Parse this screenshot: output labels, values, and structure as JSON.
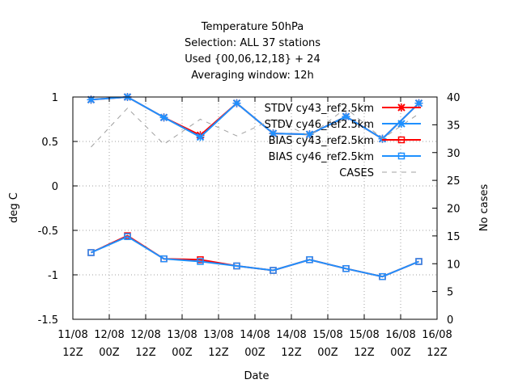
{
  "chart_data": {
    "type": "line",
    "title_lines": [
      "Temperature 50hPa",
      "Selection: ALL      37 stations",
      "Used {00,06,12,18} + 24",
      "Averaging window: 12h"
    ],
    "xlabel": "Date",
    "ylabel": "deg C",
    "y2label": "No cases",
    "x_ticks": [
      {
        "x": 0,
        "line1": "11/08",
        "line2": "12Z"
      },
      {
        "x": 1,
        "line1": "12/08",
        "line2": "00Z"
      },
      {
        "x": 2,
        "line1": "12/08",
        "line2": "12Z"
      },
      {
        "x": 3,
        "line1": "13/08",
        "line2": "00Z"
      },
      {
        "x": 4,
        "line1": "13/08",
        "line2": "12Z"
      },
      {
        "x": 5,
        "line1": "14/08",
        "line2": "00Z"
      },
      {
        "x": 6,
        "line1": "14/08",
        "line2": "12Z"
      },
      {
        "x": 7,
        "line1": "15/08",
        "line2": "00Z"
      },
      {
        "x": 8,
        "line1": "15/08",
        "line2": "12Z"
      },
      {
        "x": 9,
        "line1": "16/08",
        "line2": "00Z"
      },
      {
        "x": 10,
        "line1": "16/08",
        "line2": "12Z"
      }
    ],
    "xlim": [
      0,
      10
    ],
    "ylim": [
      -1.5,
      1
    ],
    "y_ticks": [
      -1.5,
      -1,
      -0.5,
      0,
      0.5,
      1
    ],
    "y2lim": [
      0,
      40
    ],
    "y2_ticks": [
      0,
      5,
      10,
      15,
      20,
      25,
      30,
      35,
      40
    ],
    "grid": true,
    "legend_position": "top-right",
    "series": [
      {
        "name": "STDV cy43_ref2.5km",
        "color": "#ff0000",
        "marker": "x",
        "axis": "y",
        "x": [
          0.5,
          1.5,
          2.5,
          3.5,
          4.5,
          5.5,
          6.5,
          7.5,
          8.5,
          9.5
        ],
        "y": [
          0.97,
          1.0,
          0.77,
          0.57,
          0.93,
          0.59,
          0.58,
          0.78,
          0.53,
          0.93
        ]
      },
      {
        "name": "STDV cy46_ref2.5km",
        "color": "#1e90ff",
        "marker": "x",
        "axis": "y",
        "x": [
          0.5,
          1.5,
          2.5,
          3.5,
          4.5,
          5.5,
          6.5,
          7.5,
          8.5,
          9.5
        ],
        "y": [
          0.97,
          1.0,
          0.77,
          0.55,
          0.93,
          0.59,
          0.58,
          0.78,
          0.53,
          0.93
        ]
      },
      {
        "name": "BIAS cy43_ref2.5km",
        "color": "#ff0000",
        "marker": "square",
        "axis": "y",
        "x": [
          0.5,
          1.5,
          2.5,
          3.5,
          4.5,
          5.5,
          6.5,
          7.5,
          8.5,
          9.5
        ],
        "y": [
          -0.75,
          -0.56,
          -0.82,
          -0.83,
          -0.9,
          -0.95,
          -0.83,
          -0.93,
          -1.02,
          -0.85
        ]
      },
      {
        "name": "BIAS cy46_ref2.5km",
        "color": "#1e90ff",
        "marker": "square",
        "axis": "y",
        "x": [
          0.5,
          1.5,
          2.5,
          3.5,
          4.5,
          5.5,
          6.5,
          7.5,
          8.5,
          9.5
        ],
        "y": [
          -0.75,
          -0.57,
          -0.82,
          -0.85,
          -0.9,
          -0.95,
          -0.83,
          -0.93,
          -1.02,
          -0.85
        ]
      },
      {
        "name": "CASES",
        "color": "#a0a0a0",
        "marker": "none",
        "dashed": true,
        "axis": "y2",
        "x": [
          0.5,
          1.5,
          2.5,
          3.5,
          4.5,
          5.5,
          6.5,
          7.5,
          8.5,
          9.5
        ],
        "y": [
          31,
          38,
          31.5,
          36,
          33,
          36,
          33,
          38,
          32.5,
          37
        ]
      }
    ]
  }
}
